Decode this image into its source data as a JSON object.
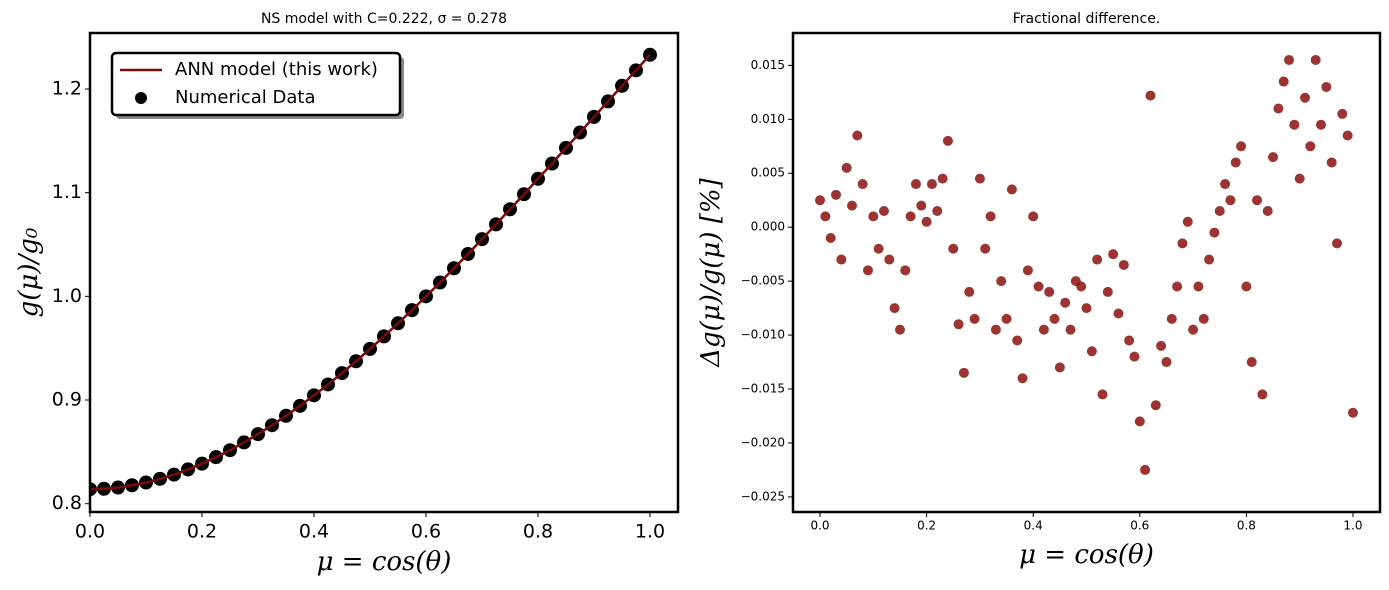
{
  "chart_data": [
    {
      "type": "line",
      "title": "NS model with C=0.222, σ = 0.278",
      "xlabel": "μ = cos(θ)",
      "ylabel": "g(μ)/g₀",
      "x": [
        0,
        0.025,
        0.05,
        0.075,
        0.1,
        0.125,
        0.15,
        0.175,
        0.2,
        0.225,
        0.25,
        0.275,
        0.3,
        0.325,
        0.35,
        0.375,
        0.4,
        0.425,
        0.45,
        0.475,
        0.5,
        0.525,
        0.55,
        0.575,
        0.6,
        0.625,
        0.65,
        0.675,
        0.7,
        0.725,
        0.75,
        0.775,
        0.8,
        0.825,
        0.85,
        0.875,
        0.9,
        0.925,
        0.95,
        0.975,
        1.0
      ],
      "series": [
        {
          "name": "ANN model (this work)",
          "style": "line",
          "color": "#7a0a0a",
          "values": [
            0.814,
            0.8144,
            0.8156,
            0.8178,
            0.8204,
            0.824,
            0.8281,
            0.8331,
            0.8386,
            0.8449,
            0.8516,
            0.8591,
            0.8671,
            0.8757,
            0.8848,
            0.8944,
            0.9045,
            0.915,
            0.926,
            0.9374,
            0.9493,
            0.9614,
            0.974,
            0.9867,
            1.0,
            1.0133,
            1.0271,
            1.0409,
            1.0552,
            1.0694,
            1.084,
            1.0985,
            1.1134,
            1.1281,
            1.1432,
            1.158,
            1.1731,
            1.188,
            1.2031,
            1.218,
            1.233
          ]
        },
        {
          "name": "Numerical Data",
          "style": "scatter",
          "color": "#000000",
          "values": [
            0.814,
            0.8144,
            0.8156,
            0.8178,
            0.8204,
            0.824,
            0.8281,
            0.8331,
            0.8386,
            0.8449,
            0.8516,
            0.8591,
            0.8671,
            0.8757,
            0.8848,
            0.8944,
            0.9045,
            0.915,
            0.926,
            0.9374,
            0.9493,
            0.9614,
            0.974,
            0.9867,
            1.0,
            1.0133,
            1.0271,
            1.0409,
            1.0552,
            1.0694,
            1.084,
            1.0985,
            1.1134,
            1.1281,
            1.1432,
            1.158,
            1.1731,
            1.188,
            1.2031,
            1.218,
            1.233
          ]
        }
      ],
      "xlim": [
        0,
        1.05
      ],
      "ylim": [
        0.792,
        1.254
      ],
      "xticks": [
        {
          "value": 0,
          "label": "0.0"
        },
        0.2,
        0.4,
        0.6,
        0.8,
        {
          "value": 1,
          "label": "1.0"
        }
      ],
      "yticks": [
        0.8,
        0.9,
        {
          "value": 1,
          "label": "1.0"
        },
        1.1,
        1.2
      ],
      "legend": "upper left"
    },
    {
      "type": "scatter",
      "title": "Fractional difference.",
      "xlabel": "μ = cos(θ)",
      "ylabel": "Δg(μ)/g(μ) [%]",
      "color": "#8b1010",
      "x": [
        0,
        0.01,
        0.02,
        0.03,
        0.04,
        0.05,
        0.06,
        0.07,
        0.08,
        0.09,
        0.1,
        0.11,
        0.12,
        0.13,
        0.14,
        0.15,
        0.16,
        0.17,
        0.18,
        0.19,
        0.2,
        0.21,
        0.22,
        0.23,
        0.24,
        0.25,
        0.26,
        0.27,
        0.28,
        0.29,
        0.3,
        0.31,
        0.32,
        0.33,
        0.34,
        0.35,
        0.36,
        0.37,
        0.38,
        0.39,
        0.4,
        0.41,
        0.42,
        0.43,
        0.44,
        0.45,
        0.46,
        0.47,
        0.48,
        0.49,
        0.5,
        0.51,
        0.52,
        0.53,
        0.54,
        0.55,
        0.56,
        0.57,
        0.58,
        0.59,
        0.6,
        0.61,
        0.62,
        0.63,
        0.64,
        0.65,
        0.66,
        0.67,
        0.68,
        0.69,
        0.7,
        0.71,
        0.72,
        0.73,
        0.74,
        0.75,
        0.76,
        0.77,
        0.78,
        0.79,
        0.8,
        0.81,
        0.82,
        0.83,
        0.84,
        0.85,
        0.86,
        0.87,
        0.88,
        0.89,
        0.9,
        0.91,
        0.92,
        0.93,
        0.94,
        0.95,
        0.96,
        0.97,
        0.98,
        0.99,
        1.0
      ],
      "values": [
        0.0025,
        0.001,
        -0.001,
        0.003,
        -0.003,
        0.0055,
        0.002,
        0.0085,
        0.004,
        -0.004,
        0.001,
        -0.002,
        0.0015,
        -0.003,
        -0.0075,
        -0.0095,
        -0.004,
        0.001,
        0.004,
        0.002,
        0.0005,
        0.004,
        0.0015,
        0.0045,
        0.008,
        -0.002,
        -0.009,
        -0.0135,
        -0.006,
        -0.0085,
        0.0045,
        -0.002,
        0.001,
        -0.0095,
        -0.005,
        -0.0085,
        0.0035,
        -0.0105,
        -0.014,
        -0.004,
        0.001,
        -0.0055,
        -0.0095,
        -0.006,
        -0.0085,
        -0.013,
        -0.007,
        -0.0095,
        -0.005,
        -0.0055,
        -0.0075,
        -0.0115,
        -0.003,
        -0.0155,
        -0.006,
        -0.0025,
        -0.008,
        -0.0035,
        -0.0105,
        -0.012,
        -0.018,
        -0.0225,
        0.0122,
        -0.0165,
        -0.011,
        -0.0125,
        -0.0085,
        -0.0055,
        -0.0015,
        0.0005,
        -0.0095,
        -0.0055,
        -0.0085,
        -0.003,
        -0.0005,
        0.0015,
        0.004,
        0.0025,
        0.006,
        0.0075,
        -0.0055,
        -0.0125,
        0.0025,
        -0.0155,
        0.0015,
        0.0065,
        0.011,
        0.0135,
        0.0155,
        0.0095,
        0.0045,
        0.012,
        0.0075,
        0.0155,
        0.0095,
        0.013,
        0.006,
        -0.0015,
        0.0105,
        0.0085,
        -0.0172
      ],
      "xlim": [
        -0.0507,
        1.0507
      ],
      "ylim": [
        -0.0264,
        0.018
      ],
      "xticks": [
        {
          "value": 0,
          "label": "0.0"
        },
        0.2,
        0.4,
        0.6,
        0.8,
        {
          "value": 1,
          "label": "1.0"
        }
      ],
      "yticks": [
        {
          "value": 0.015,
          "label": "0.015"
        },
        {
          "value": 0.01,
          "label": "0.010"
        },
        {
          "value": 0.005,
          "label": "0.005"
        },
        {
          "value": 0,
          "label": "0.000"
        },
        {
          "value": -0.005,
          "label": "−0.005"
        },
        {
          "value": -0.01,
          "label": "−0.010"
        },
        {
          "value": -0.015,
          "label": "−0.015"
        },
        {
          "value": -0.02,
          "label": "−0.020"
        },
        {
          "value": -0.025,
          "label": "−0.025"
        }
      ]
    }
  ]
}
